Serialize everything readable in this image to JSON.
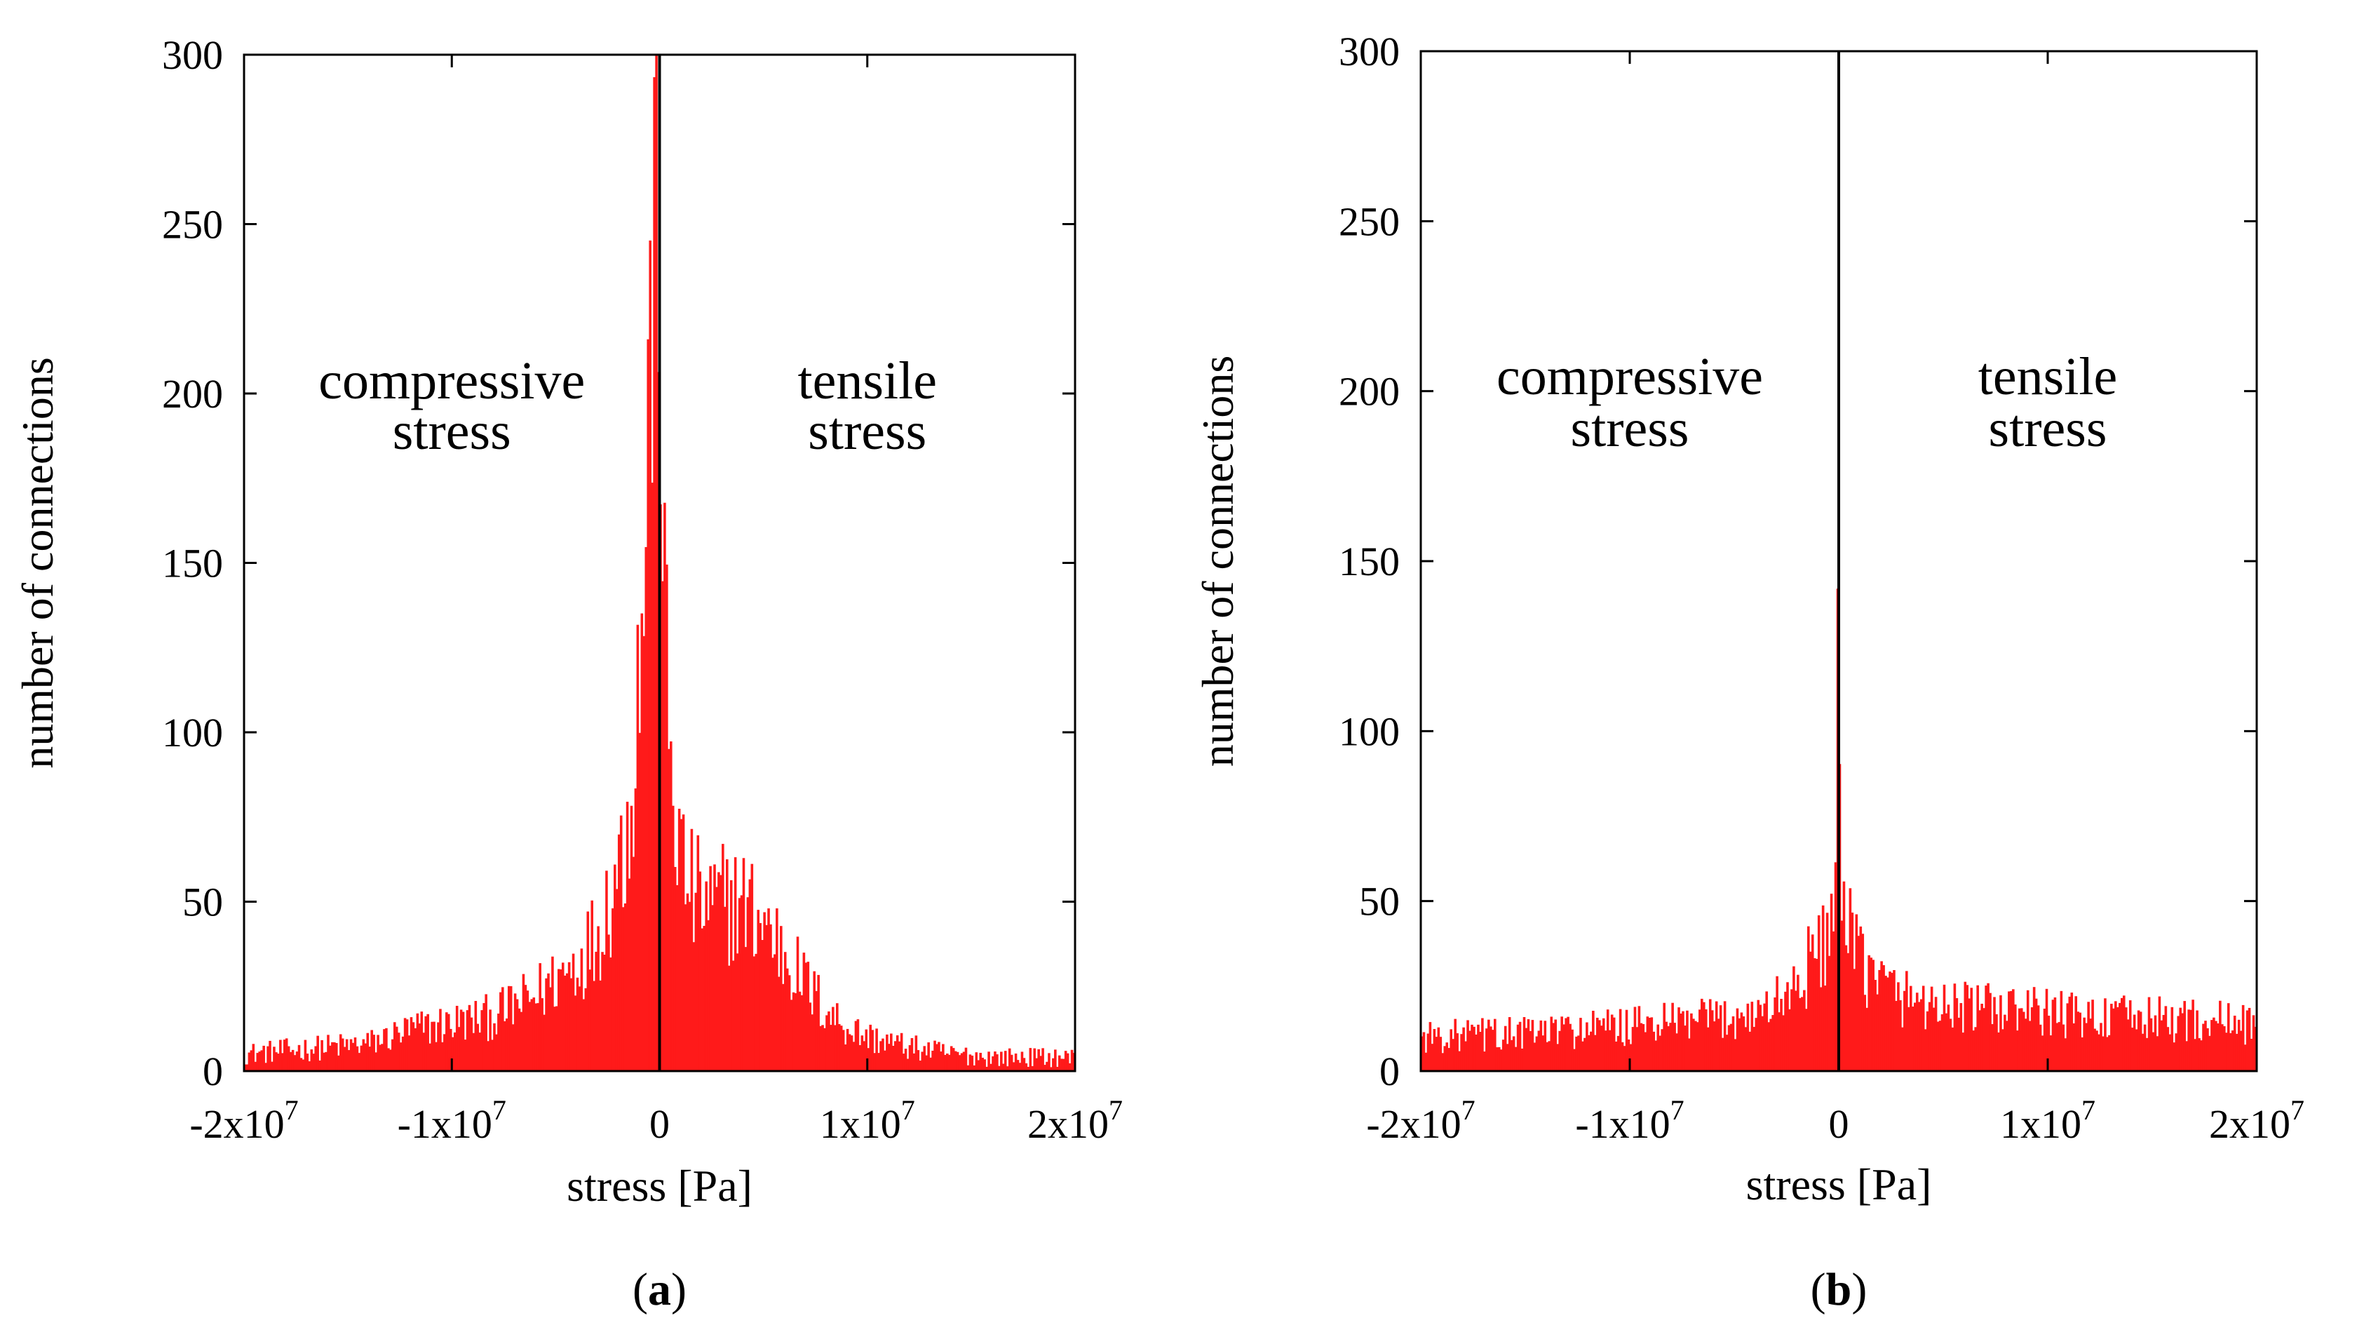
{
  "chart_data": [
    {
      "type": "bar",
      "panel_label": {
        "open": "(",
        "letter": "a",
        "close": ")"
      },
      "xlabel": "stress [Pa]",
      "ylabel": "number of connections",
      "xlim": [
        -20000000,
        20000000
      ],
      "ylim": [
        0,
        300
      ],
      "x_ticks": [
        {
          "value": -20000000,
          "mantissa": "-2x10",
          "exp": "7"
        },
        {
          "value": -10000000,
          "mantissa": "-1x10",
          "exp": "7"
        },
        {
          "value": 0,
          "mantissa": "0",
          "exp": ""
        },
        {
          "value": 10000000,
          "mantissa": "1x10",
          "exp": "7"
        },
        {
          "value": 20000000,
          "mantissa": "2x10",
          "exp": "7"
        }
      ],
      "y_ticks": [
        0,
        50,
        100,
        150,
        200,
        250,
        300
      ],
      "annotations": {
        "compressive": [
          "compressive",
          "stress"
        ],
        "tensile": [
          "tensile",
          "stress"
        ]
      },
      "zero_line": 0,
      "series": [
        {
          "name": "histogram",
          "color": "#ff1a1a",
          "bin_width": 100000,
          "bin_start": -20000000,
          "envelope": [
            [
              -20000000,
              5
            ],
            [
              -18000000,
              6
            ],
            [
              -16000000,
              7
            ],
            [
              -14000000,
              8
            ],
            [
              -12000000,
              12
            ],
            [
              -10000000,
              14
            ],
            [
              -8000000,
              16
            ],
            [
              -6000000,
              22
            ],
            [
              -5000000,
              27
            ],
            [
              -4000000,
              32
            ],
            [
              -3000000,
              40
            ],
            [
              -2500000,
              50
            ],
            [
              -2000000,
              60
            ],
            [
              -1500000,
              75
            ],
            [
              -1200000,
              95
            ],
            [
              -900000,
              125
            ],
            [
              -700000,
              155
            ],
            [
              -500000,
              195
            ],
            [
              -300000,
              250
            ],
            [
              -150000,
              296
            ],
            [
              -50000,
              290
            ],
            [
              0,
              240
            ],
            [
              100000,
              170
            ],
            [
              300000,
              120
            ],
            [
              500000,
              95
            ],
            [
              800000,
              72
            ],
            [
              1200000,
              58
            ],
            [
              1600000,
              52
            ],
            [
              2000000,
              50
            ],
            [
              2500000,
              48
            ],
            [
              3000000,
              50
            ],
            [
              4000000,
              49
            ],
            [
              5000000,
              44
            ],
            [
              6000000,
              35
            ],
            [
              7000000,
              26
            ],
            [
              8000000,
              18
            ],
            [
              9000000,
              13
            ],
            [
              10000000,
              10
            ],
            [
              12000000,
              7
            ],
            [
              14000000,
              5
            ],
            [
              16000000,
              4
            ],
            [
              18000000,
              4
            ],
            [
              20000000,
              4
            ]
          ]
        }
      ]
    },
    {
      "type": "bar",
      "panel_label": {
        "open": "(",
        "letter": "b",
        "close": ")"
      },
      "xlabel": "stress [Pa]",
      "ylabel": "number of connections",
      "xlim": [
        -20000000,
        20000000
      ],
      "ylim": [
        0,
        300
      ],
      "x_ticks": [
        {
          "value": -20000000,
          "mantissa": "-2x10",
          "exp": "7"
        },
        {
          "value": -10000000,
          "mantissa": "-1x10",
          "exp": "7"
        },
        {
          "value": 0,
          "mantissa": "0",
          "exp": ""
        },
        {
          "value": 10000000,
          "mantissa": "1x10",
          "exp": "7"
        },
        {
          "value": 20000000,
          "mantissa": "2x10",
          "exp": "7"
        }
      ],
      "y_ticks": [
        0,
        50,
        100,
        150,
        200,
        250,
        300
      ],
      "annotations": {
        "compressive": [
          "compressive",
          "stress"
        ],
        "tensile": [
          "tensile",
          "stress"
        ]
      },
      "zero_line": 0,
      "series": [
        {
          "name": "histogram",
          "color": "#ff1a1a",
          "bin_width": 100000,
          "bin_start": -20000000,
          "envelope": [
            [
              -20000000,
              10
            ],
            [
              -15000000,
              11
            ],
            [
              -10000000,
              13
            ],
            [
              -6000000,
              15
            ],
            [
              -4000000,
              17
            ],
            [
              -3000000,
              20
            ],
            [
              -2000000,
              25
            ],
            [
              -1500000,
              30
            ],
            [
              -1000000,
              35
            ],
            [
              -600000,
              40
            ],
            [
              -300000,
              46
            ],
            [
              -150000,
              55
            ],
            [
              -80000,
              70
            ],
            [
              -30000,
              130
            ],
            [
              0,
              80
            ],
            [
              100000,
              52
            ],
            [
              300000,
              44
            ],
            [
              600000,
              38
            ],
            [
              1000000,
              33
            ],
            [
              2000000,
              26
            ],
            [
              3000000,
              22
            ],
            [
              5000000,
              19
            ],
            [
              8000000,
              18
            ],
            [
              12000000,
              16
            ],
            [
              16000000,
              15
            ],
            [
              20000000,
              14
            ]
          ]
        }
      ]
    }
  ]
}
